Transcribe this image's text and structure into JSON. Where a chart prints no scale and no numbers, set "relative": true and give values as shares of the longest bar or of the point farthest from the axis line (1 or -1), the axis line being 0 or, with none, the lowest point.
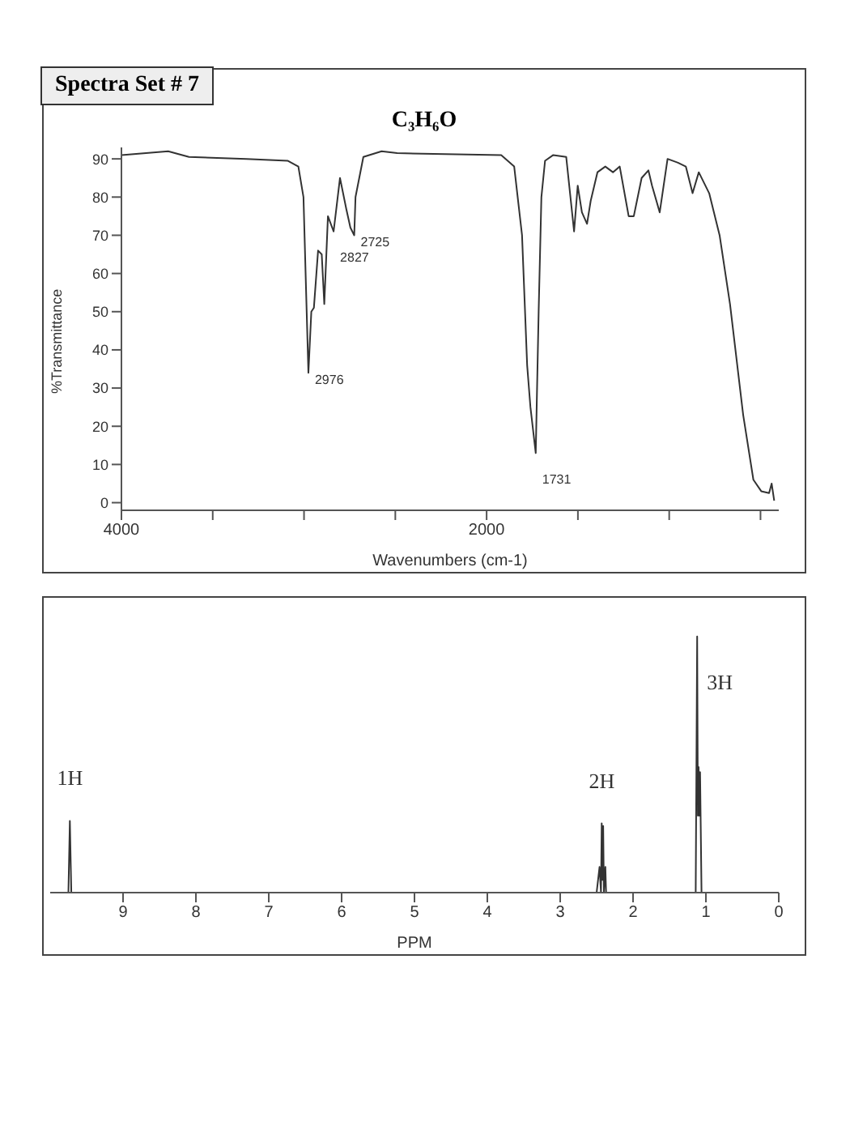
{
  "chart_data": [
    {
      "type": "line",
      "title": "C₃H₆O",
      "xlabel": "Wavenumbers (cm-1)",
      "ylabel": "%Transmittance",
      "color": "#333333",
      "marker": "none",
      "grid": false,
      "legend": false,
      "annotations": [
        "Spectra Set # 7",
        {
          "text": "2976",
          "x": 2976,
          "y": 34
        },
        {
          "text": "2827",
          "x": 2838,
          "y": 71
        },
        {
          "text": "2725",
          "x": 2725,
          "y": 70
        },
        {
          "text": "1731",
          "x": 1731,
          "y": 13
        }
      ],
      "xlim": [
        4000,
        400
      ],
      "xticks": [
        4000,
        {
          "value": 3500,
          "label": null
        },
        {
          "value": 3000,
          "label": null
        },
        {
          "value": 2500,
          "label": null
        },
        2000,
        {
          "value": 1500,
          "label": null
        },
        {
          "value": 1000,
          "label": null
        },
        {
          "value": 500,
          "label": null
        }
      ],
      "ylim": [
        -2,
        93
      ],
      "yticks": [
        0,
        10,
        20,
        30,
        40,
        50,
        60,
        70,
        80,
        90
      ],
      "x": [
        4000,
        3744,
        3630,
        3316,
        3088,
        3031,
        3003,
        2989,
        2976,
        2960,
        2946,
        2923,
        2903,
        2889,
        2869,
        2838,
        2803,
        2769,
        2746,
        2725,
        2718,
        2675,
        2575,
        2490,
        1920,
        1849,
        1806,
        1778,
        1760,
        1731,
        1715,
        1700,
        1680,
        1635,
        1564,
        1521,
        1501,
        1478,
        1450,
        1430,
        1393,
        1350,
        1308,
        1271,
        1222,
        1194,
        1151,
        1114,
        1094,
        1052,
        1009,
        952,
        909,
        872,
        838,
        781,
        724,
        667,
        595,
        539,
        496,
        453,
        439,
        425
      ],
      "values": [
        91,
        92,
        90.5,
        90,
        89.5,
        88,
        80,
        56,
        34,
        50,
        51,
        66,
        65,
        52,
        75,
        71,
        85,
        77,
        72,
        70,
        80,
        90.5,
        92,
        91.5,
        91,
        88,
        70,
        36,
        25,
        13,
        50,
        80,
        89.5,
        91,
        90.5,
        71,
        83,
        76,
        73,
        79,
        86.5,
        88,
        86.5,
        88,
        75,
        75,
        85,
        87,
        83,
        76,
        90,
        89,
        88,
        81,
        86.5,
        81,
        70,
        52,
        23,
        6,
        3,
        2.5,
        5,
        0.5
      ]
    },
    {
      "type": "line",
      "xlabel": "PPM",
      "color": "#333333",
      "marker": "none",
      "relative": true,
      "annotations": [
        {
          "text": "1H",
          "x": 9.73,
          "y": 0.28
        },
        {
          "text": "2H",
          "x": 2.43,
          "y": 0.27
        },
        {
          "text": "3H",
          "x": 1.12,
          "y": 1
        }
      ],
      "xlim": [
        10,
        0
      ],
      "xticks": [
        9,
        8,
        7,
        6,
        5,
        4,
        3,
        2,
        1,
        0
      ],
      "x": [
        10,
        9.75,
        9.73,
        9.71,
        2.5,
        2.46,
        2.44,
        2.43,
        2.42,
        2.41,
        2.4,
        2.38,
        2.37,
        1.14,
        1.12,
        1.11,
        1.1,
        1.09,
        1.08,
        1.06,
        0
      ],
      "values": [
        0,
        0,
        0.28,
        0,
        0,
        0.1,
        0,
        0.27,
        0.05,
        0.26,
        0,
        0.1,
        0,
        0,
        1,
        0.3,
        0.49,
        0.3,
        0.47,
        0,
        0
      ]
    }
  ]
}
